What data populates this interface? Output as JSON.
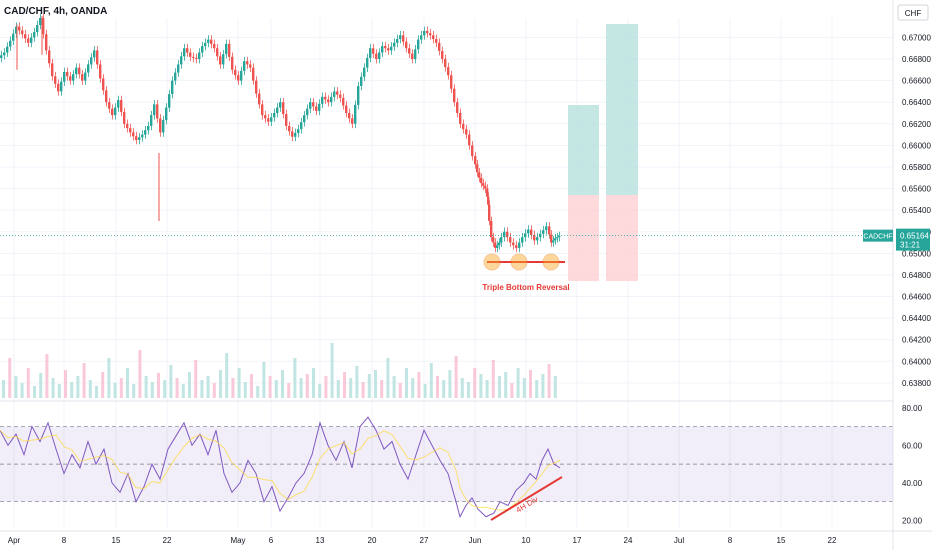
{
  "header": {
    "symbol": "CAD/CHF, 4h, OANDA"
  },
  "currency": "CHF",
  "chart_data": {
    "type": "candlestick",
    "price_axis": {
      "ticks": [
        "0.67000",
        "0.66800",
        "0.66600",
        "0.66400",
        "0.66200",
        "0.66000",
        "0.65800",
        "0.65600",
        "0.65400",
        "0.65200",
        "0.65000",
        "0.64800",
        "0.64600",
        "0.64400",
        "0.64200",
        "0.64000",
        "0.63800"
      ],
      "range": [
        0.637,
        0.672
      ]
    },
    "rsi_axis": {
      "ticks": [
        "80.00",
        "60.00",
        "40.00",
        "20.00"
      ],
      "range": [
        16,
        80
      ]
    },
    "time_axis": {
      "ticks": [
        "Apr",
        "8",
        "15",
        "22",
        "May",
        "6",
        "13",
        "20",
        "27",
        "Jun",
        "10",
        "17",
        "24",
        "Jul",
        "8",
        "15",
        "22"
      ]
    },
    "last_price": {
      "symbol": "CADCHF",
      "value": "0.65164",
      "countdown": "31:21",
      "color": "#26a69a"
    },
    "price_path": [
      [
        0,
        0.6681
      ],
      [
        6,
        0.6686
      ],
      [
        12,
        0.6697
      ],
      [
        18,
        0.671
      ],
      [
        24,
        0.6703
      ],
      [
        30,
        0.6695
      ],
      [
        36,
        0.6705
      ],
      [
        42,
        0.6718
      ],
      [
        48,
        0.6688
      ],
      [
        54,
        0.6664
      ],
      [
        60,
        0.665
      ],
      [
        66,
        0.6668
      ],
      [
        72,
        0.666
      ],
      [
        78,
        0.6672
      ],
      [
        84,
        0.666
      ],
      [
        90,
        0.6675
      ],
      [
        96,
        0.6688
      ],
      [
        102,
        0.6662
      ],
      [
        108,
        0.664
      ],
      [
        114,
        0.6628
      ],
      [
        120,
        0.6642
      ],
      [
        126,
        0.662
      ],
      [
        132,
        0.6612
      ],
      [
        138,
        0.6605
      ],
      [
        144,
        0.661
      ],
      [
        150,
        0.6618
      ],
      [
        156,
        0.6638
      ],
      [
        162,
        0.6612
      ],
      [
        168,
        0.6635
      ],
      [
        174,
        0.666
      ],
      [
        180,
        0.6675
      ],
      [
        186,
        0.669
      ],
      [
        192,
        0.6682
      ],
      [
        198,
        0.668
      ],
      [
        204,
        0.6692
      ],
      [
        210,
        0.6698
      ],
      [
        216,
        0.669
      ],
      [
        222,
        0.6675
      ],
      [
        228,
        0.6694
      ],
      [
        234,
        0.667
      ],
      [
        240,
        0.666
      ],
      [
        246,
        0.6678
      ],
      [
        252,
        0.6672
      ],
      [
        258,
        0.6648
      ],
      [
        264,
        0.6628
      ],
      [
        270,
        0.6622
      ],
      [
        276,
        0.663
      ],
      [
        282,
        0.664
      ],
      [
        288,
        0.6618
      ],
      [
        294,
        0.6608
      ],
      [
        300,
        0.6615
      ],
      [
        306,
        0.6628
      ],
      [
        312,
        0.664
      ],
      [
        318,
        0.6632
      ],
      [
        324,
        0.6645
      ],
      [
        330,
        0.664
      ],
      [
        336,
        0.665
      ],
      [
        342,
        0.6644
      ],
      [
        348,
        0.663
      ],
      [
        354,
        0.662
      ],
      [
        360,
        0.6655
      ],
      [
        366,
        0.6672
      ],
      [
        372,
        0.669
      ],
      [
        378,
        0.668
      ],
      [
        384,
        0.6692
      ],
      [
        390,
        0.6688
      ],
      [
        396,
        0.6695
      ],
      [
        402,
        0.6702
      ],
      [
        408,
        0.669
      ],
      [
        414,
        0.668
      ],
      [
        420,
        0.6698
      ],
      [
        426,
        0.6706
      ],
      [
        432,
        0.6702
      ],
      [
        438,
        0.6695
      ],
      [
        444,
        0.668
      ],
      [
        450,
        0.6665
      ],
      [
        456,
        0.664
      ],
      [
        462,
        0.662
      ],
      [
        468,
        0.661
      ],
      [
        474,
        0.659
      ],
      [
        478,
        0.6575
      ],
      [
        482,
        0.6565
      ],
      [
        486,
        0.656
      ],
      [
        488,
        0.6545
      ],
      [
        492,
        0.6515
      ],
      [
        496,
        0.6505
      ],
      [
        500,
        0.651
      ],
      [
        506,
        0.652
      ],
      [
        512,
        0.651
      ],
      [
        518,
        0.6505
      ],
      [
        524,
        0.6515
      ],
      [
        530,
        0.6522
      ],
      [
        536,
        0.6512
      ],
      [
        542,
        0.6518
      ],
      [
        548,
        0.6525
      ],
      [
        552,
        0.651
      ],
      [
        556,
        0.6514
      ],
      [
        560,
        0.6516
      ]
    ],
    "wicks": [
      [
        159,
        0.6593,
        0.653
      ],
      [
        17,
        0.6712,
        0.667
      ],
      [
        42,
        0.672,
        0.6684
      ]
    ],
    "volume": [
      18,
      40,
      22,
      15,
      30,
      12,
      25,
      44,
      20,
      14,
      28,
      16,
      22,
      35,
      18,
      12,
      26,
      40,
      15,
      20,
      30,
      14,
      48,
      22,
      16,
      25,
      18,
      33,
      20,
      14,
      26,
      38,
      18,
      22,
      15,
      28,
      45,
      20,
      30,
      16,
      24,
      12,
      36,
      22,
      18,
      28,
      15,
      40,
      20,
      24,
      30,
      14,
      22,
      55,
      18,
      26,
      20,
      32,
      16,
      24,
      28,
      18,
      40,
      22,
      15,
      30,
      20,
      26,
      14,
      35,
      22,
      18,
      28,
      42,
      20,
      16,
      30,
      24,
      18,
      38,
      22,
      26,
      15,
      30,
      20,
      28,
      18,
      24,
      34,
      22
    ],
    "rsi_path": [
      [
        0,
        68
      ],
      [
        8,
        60
      ],
      [
        16,
        66
      ],
      [
        24,
        55
      ],
      [
        32,
        70
      ],
      [
        40,
        62
      ],
      [
        48,
        72
      ],
      [
        56,
        58
      ],
      [
        64,
        45
      ],
      [
        72,
        55
      ],
      [
        80,
        48
      ],
      [
        88,
        62
      ],
      [
        96,
        50
      ],
      [
        104,
        58
      ],
      [
        112,
        40
      ],
      [
        120,
        35
      ],
      [
        128,
        45
      ],
      [
        136,
        30
      ],
      [
        144,
        38
      ],
      [
        152,
        50
      ],
      [
        160,
        42
      ],
      [
        168,
        58
      ],
      [
        176,
        65
      ],
      [
        184,
        72
      ],
      [
        192,
        60
      ],
      [
        200,
        66
      ],
      [
        208,
        55
      ],
      [
        216,
        68
      ],
      [
        224,
        45
      ],
      [
        232,
        35
      ],
      [
        240,
        40
      ],
      [
        248,
        52
      ],
      [
        256,
        45
      ],
      [
        264,
        30
      ],
      [
        272,
        38
      ],
      [
        280,
        25
      ],
      [
        288,
        32
      ],
      [
        296,
        40
      ],
      [
        304,
        45
      ],
      [
        312,
        55
      ],
      [
        320,
        72
      ],
      [
        328,
        60
      ],
      [
        336,
        52
      ],
      [
        344,
        62
      ],
      [
        352,
        48
      ],
      [
        360,
        70
      ],
      [
        368,
        75
      ],
      [
        376,
        68
      ],
      [
        384,
        58
      ],
      [
        392,
        62
      ],
      [
        400,
        50
      ],
      [
        408,
        42
      ],
      [
        416,
        55
      ],
      [
        424,
        68
      ],
      [
        432,
        60
      ],
      [
        440,
        52
      ],
      [
        448,
        45
      ],
      [
        456,
        30
      ],
      [
        460,
        22
      ],
      [
        466,
        28
      ],
      [
        472,
        32
      ],
      [
        478,
        26
      ],
      [
        486,
        22
      ],
      [
        494,
        24
      ],
      [
        500,
        30
      ],
      [
        508,
        28
      ],
      [
        516,
        36
      ],
      [
        524,
        40
      ],
      [
        530,
        45
      ],
      [
        536,
        42
      ],
      [
        542,
        52
      ],
      [
        548,
        58
      ],
      [
        554,
        50
      ],
      [
        560,
        48
      ]
    ],
    "annotations": {
      "pattern_label": "Triple Bottom Reversal",
      "divergence_label": "4H Div",
      "target_color": "#b2dfdb",
      "stop_color": "#ffcdd2",
      "pattern_line_color": "#e53935",
      "marker_color": "#f9a825"
    }
  }
}
